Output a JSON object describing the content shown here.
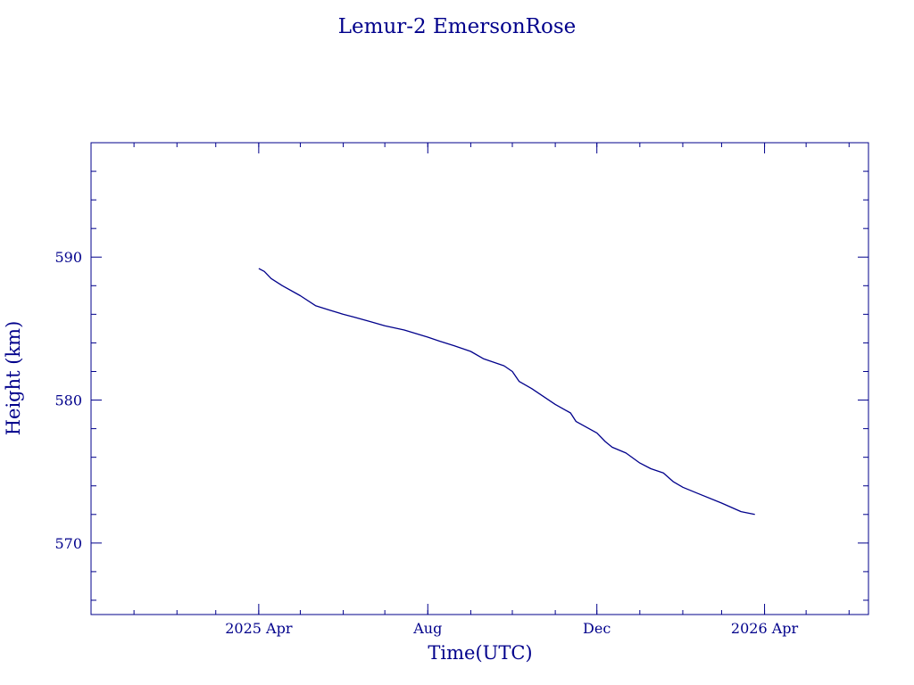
{
  "chart_data": {
    "type": "line",
    "title": "Lemur-2 EmersonRose",
    "xlabel": "Time(UTC)",
    "ylabel": "Height (km)",
    "color": "#00008b",
    "grid": false,
    "legend": "none",
    "x_axis": {
      "scale": "time",
      "range": [
        "2024-12-01",
        "2026-06-15"
      ],
      "ticks": [
        {
          "date": "2025-04-01",
          "label": "2025 Apr"
        },
        {
          "date": "2025-08-01",
          "label": "Aug"
        },
        {
          "date": "2025-12-01",
          "label": "Dec"
        },
        {
          "date": "2026-04-01",
          "label": "2026 Apr"
        }
      ],
      "minor_tick_months": 1
    },
    "y_axis": {
      "range": [
        565,
        598
      ],
      "ticks": [
        570,
        580,
        590
      ],
      "tick_labels": [
        "570",
        "580",
        "590"
      ],
      "minor_step": 2
    },
    "series": [
      {
        "points": [
          [
            "2025-04-01",
            589.2
          ],
          [
            "2025-04-05",
            589.0
          ],
          [
            "2025-04-10",
            588.5
          ],
          [
            "2025-04-18",
            588.0
          ],
          [
            "2025-05-01",
            587.3
          ],
          [
            "2025-05-12",
            586.6
          ],
          [
            "2025-05-22",
            586.3
          ],
          [
            "2025-06-01",
            586.0
          ],
          [
            "2025-06-09",
            585.8
          ],
          [
            "2025-06-20",
            585.5
          ],
          [
            "2025-07-01",
            585.2
          ],
          [
            "2025-07-15",
            584.9
          ],
          [
            "2025-08-01",
            584.4
          ],
          [
            "2025-08-10",
            584.1
          ],
          [
            "2025-08-20",
            583.8
          ],
          [
            "2025-09-01",
            583.4
          ],
          [
            "2025-09-10",
            582.9
          ],
          [
            "2025-09-25",
            582.4
          ],
          [
            "2025-10-01",
            582.0
          ],
          [
            "2025-10-06",
            581.3
          ],
          [
            "2025-10-15",
            580.8
          ],
          [
            "2025-11-01",
            579.7
          ],
          [
            "2025-11-12",
            579.1
          ],
          [
            "2025-11-16",
            578.5
          ],
          [
            "2025-12-01",
            577.7
          ],
          [
            "2025-12-07",
            577.1
          ],
          [
            "2025-12-12",
            576.7
          ],
          [
            "2025-12-22",
            576.3
          ],
          [
            "2026-01-01",
            575.6
          ],
          [
            "2026-01-09",
            575.2
          ],
          [
            "2026-01-18",
            574.9
          ],
          [
            "2026-01-25",
            574.3
          ],
          [
            "2026-02-01",
            573.9
          ],
          [
            "2026-02-11",
            573.5
          ],
          [
            "2026-03-01",
            572.8
          ],
          [
            "2026-03-15",
            572.2
          ],
          [
            "2026-03-25",
            572.0
          ]
        ]
      }
    ]
  }
}
